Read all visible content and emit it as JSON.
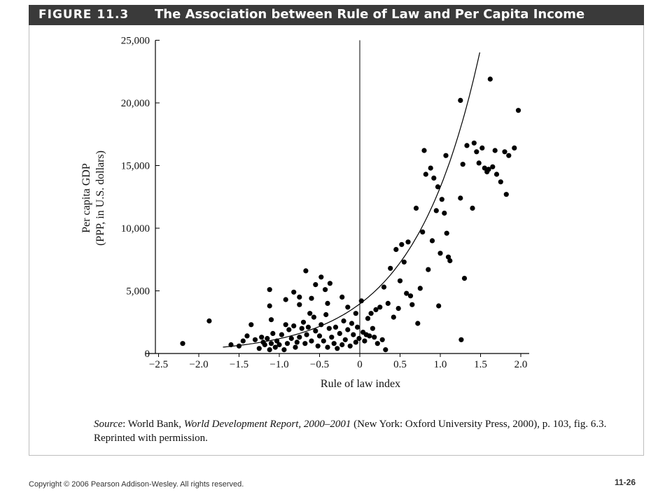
{
  "header": {
    "figure_label": "FIGURE 11.3",
    "title": "The Association between Rule of Law and Per Capita Income"
  },
  "source": {
    "label": "Source",
    "publisher": ": World Bank, ",
    "book": "World Development Report, 2000–2001",
    "rest": " (New York: Oxford University Press, 2000), p. 103, fig. 6.3. Reprinted with permission."
  },
  "footer": {
    "copyright": "Copyright © 2006 Pearson Addison-Wesley. All rights reserved.",
    "page_number": "11-26"
  },
  "colors": {
    "header_bg": "#3a3a3a",
    "points": "#000000"
  },
  "chart_data": {
    "type": "scatter",
    "title": "The Association between Rule of Law and Per Capita Income",
    "xlabel": "Rule of law index",
    "ylabel_line1": "Per capita GDP",
    "ylabel_line2": "(PPP, in U.S. dollars)",
    "xlim": [
      -2.5,
      2.0
    ],
    "ylim": [
      0,
      25000
    ],
    "x_ticks": [
      -2.5,
      -2.0,
      -1.5,
      -1.0,
      -0.5,
      0,
      0.5,
      1.0,
      1.5,
      2.0
    ],
    "x_tick_labels": [
      "−2.5",
      "−2.0",
      "−1.5",
      "−1.0",
      "−0.5",
      "0",
      "0.5",
      "1.0",
      "1.5",
      "2.0"
    ],
    "y_ticks": [
      0,
      5000,
      10000,
      15000,
      20000,
      25000
    ],
    "y_tick_labels": [
      "0",
      "5,000",
      "10,000",
      "15,000",
      "20,000",
      "25,000"
    ],
    "vertical_reference_line_x": 0,
    "trend": {
      "type": "exponential",
      "a": 3960,
      "b": 1.21,
      "x_from": -1.7,
      "x_to": 1.49
    },
    "points": [
      [
        -2.2,
        800
      ],
      [
        -1.87,
        2600
      ],
      [
        -1.6,
        700
      ],
      [
        -1.5,
        600
      ],
      [
        -1.45,
        1000
      ],
      [
        -1.4,
        1400
      ],
      [
        -1.35,
        2300
      ],
      [
        -1.3,
        1100
      ],
      [
        -1.25,
        400
      ],
      [
        -1.22,
        1300
      ],
      [
        -1.2,
        900
      ],
      [
        -1.18,
        700
      ],
      [
        -1.15,
        1200
      ],
      [
        -1.12,
        300
      ],
      [
        -1.1,
        800
      ],
      [
        -1.08,
        1600
      ],
      [
        -1.05,
        500
      ],
      [
        -1.03,
        1000
      ],
      [
        -1.0,
        700
      ],
      [
        -0.97,
        1500
      ],
      [
        -0.94,
        300
      ],
      [
        -0.92,
        2300
      ],
      [
        -0.9,
        800
      ],
      [
        -0.88,
        1900
      ],
      [
        -0.85,
        1200
      ],
      [
        -0.82,
        2200
      ],
      [
        -0.8,
        500
      ],
      [
        -0.78,
        900
      ],
      [
        -0.75,
        1300
      ],
      [
        -0.72,
        2000
      ],
      [
        -0.7,
        2500
      ],
      [
        -0.68,
        800
      ],
      [
        -0.66,
        1500
      ],
      [
        -0.64,
        2100
      ],
      [
        -0.62,
        3200
      ],
      [
        -0.6,
        1000
      ],
      [
        -0.57,
        2900
      ],
      [
        -0.55,
        1800
      ],
      [
        -0.52,
        600
      ],
      [
        -0.5,
        1400
      ],
      [
        -0.48,
        2300
      ],
      [
        -0.45,
        1000
      ],
      [
        -0.42,
        3100
      ],
      [
        -0.4,
        500
      ],
      [
        -0.38,
        2000
      ],
      [
        -0.35,
        1300
      ],
      [
        -0.32,
        800
      ],
      [
        -0.3,
        2100
      ],
      [
        -0.28,
        400
      ],
      [
        -0.25,
        1600
      ],
      [
        -0.22,
        700
      ],
      [
        -0.2,
        2600
      ],
      [
        -0.18,
        1100
      ],
      [
        -0.15,
        1900
      ],
      [
        -0.12,
        600
      ],
      [
        -0.1,
        2400
      ],
      [
        -0.08,
        1500
      ],
      [
        -0.05,
        900
      ],
      [
        -0.03,
        2100
      ],
      [
        -0.01,
        1200
      ],
      [
        -1.12,
        5100
      ],
      [
        -1.12,
        3800
      ],
      [
        -1.1,
        2700
      ],
      [
        -0.92,
        4300
      ],
      [
        -0.82,
        4900
      ],
      [
        -0.75,
        4500
      ],
      [
        -0.75,
        3900
      ],
      [
        -0.67,
        6600
      ],
      [
        -0.6,
        4400
      ],
      [
        -0.55,
        5500
      ],
      [
        -0.48,
        6100
      ],
      [
        -0.43,
        5100
      ],
      [
        -0.37,
        5600
      ],
      [
        -0.4,
        4000
      ],
      [
        -0.22,
        4500
      ],
      [
        -0.15,
        3700
      ],
      [
        -0.05,
        3200
      ],
      [
        0.02,
        4200
      ],
      [
        0.04,
        1700
      ],
      [
        0.06,
        1000
      ],
      [
        0.08,
        1500
      ],
      [
        0.1,
        2800
      ],
      [
        0.12,
        1400
      ],
      [
        0.14,
        3200
      ],
      [
        0.16,
        2000
      ],
      [
        0.18,
        1300
      ],
      [
        0.2,
        3500
      ],
      [
        0.22,
        800
      ],
      [
        0.25,
        3700
      ],
      [
        0.28,
        1100
      ],
      [
        0.3,
        5300
      ],
      [
        0.32,
        300
      ],
      [
        0.35,
        4000
      ],
      [
        0.38,
        6800
      ],
      [
        0.42,
        2900
      ],
      [
        0.45,
        8300
      ],
      [
        0.48,
        3600
      ],
      [
        0.5,
        5800
      ],
      [
        0.52,
        8700
      ],
      [
        0.55,
        7300
      ],
      [
        0.58,
        4800
      ],
      [
        0.6,
        8900
      ],
      [
        0.63,
        4600
      ],
      [
        0.65,
        3900
      ],
      [
        0.7,
        11600
      ],
      [
        0.72,
        2400
      ],
      [
        0.75,
        5200
      ],
      [
        0.78,
        9700
      ],
      [
        0.8,
        16200
      ],
      [
        0.82,
        14300
      ],
      [
        0.85,
        6700
      ],
      [
        0.88,
        14800
      ],
      [
        0.9,
        9000
      ],
      [
        0.92,
        14000
      ],
      [
        0.95,
        11400
      ],
      [
        0.97,
        13300
      ],
      [
        0.98,
        3800
      ],
      [
        1.0,
        8000
      ],
      [
        1.02,
        12300
      ],
      [
        1.05,
        11200
      ],
      [
        1.07,
        15800
      ],
      [
        1.08,
        9600
      ],
      [
        1.1,
        7700
      ],
      [
        1.12,
        7400
      ],
      [
        1.25,
        20200
      ],
      [
        1.25,
        12400
      ],
      [
        1.26,
        1100
      ],
      [
        1.28,
        15100
      ],
      [
        1.3,
        6000
      ],
      [
        1.33,
        16600
      ],
      [
        1.4,
        11600
      ],
      [
        1.42,
        16800
      ],
      [
        1.45,
        16100
      ],
      [
        1.48,
        15200
      ],
      [
        1.52,
        16400
      ],
      [
        1.55,
        14800
      ],
      [
        1.58,
        14500
      ],
      [
        1.6,
        14700
      ],
      [
        1.62,
        21900
      ],
      [
        1.65,
        14900
      ],
      [
        1.68,
        16200
      ],
      [
        1.7,
        14300
      ],
      [
        1.75,
        13700
      ],
      [
        1.8,
        16100
      ],
      [
        1.82,
        12700
      ],
      [
        1.85,
        15800
      ],
      [
        1.92,
        16400
      ],
      [
        1.97,
        19400
      ]
    ]
  }
}
